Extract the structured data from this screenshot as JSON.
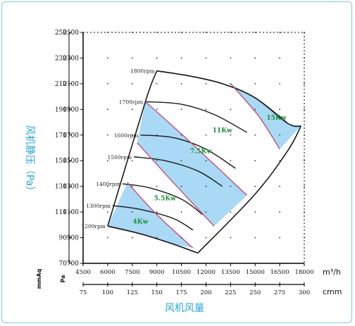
{
  "chart_data": {
    "type": "line",
    "title": "",
    "ylabel": "风机静压（Pa）",
    "xlabel": "风机风量",
    "y_primary": {
      "unit": "mmAq",
      "ticks": [
        70,
        90,
        110,
        130,
        150,
        170,
        190,
        210,
        230,
        250
      ]
    },
    "y_secondary": {
      "unit": "Pa",
      "ticks": [
        700,
        900,
        1100,
        1300,
        1500,
        1700,
        1900,
        2100,
        2300,
        2500
      ]
    },
    "x_primary": {
      "unit": "m³/h",
      "ticks": [
        4500,
        6000,
        7500,
        9000,
        10500,
        12000,
        13500,
        15000,
        16500,
        18000
      ]
    },
    "x_secondary": {
      "unit": "cmm",
      "ticks": [
        75,
        100,
        125,
        150,
        175,
        200,
        225,
        250,
        275,
        300
      ]
    },
    "xlim": [
      4500,
      18000
    ],
    "ylim": [
      700,
      2500
    ],
    "colors": {
      "region": "#a9d9f5",
      "power_line": "#c0507a",
      "curve": "#1a1a1a",
      "power_text": "#1e8b3a",
      "accent": "#29a6d6"
    },
    "rpm_curves": [
      {
        "label": "1200rpm",
        "points": [
          [
            6000,
            990
          ],
          [
            8000,
            930
          ],
          [
            10000,
            850
          ],
          [
            11500,
            780
          ]
        ]
      },
      {
        "label": "1300rpm",
        "points": [
          [
            6300,
            1150
          ],
          [
            8000,
            1120
          ],
          [
            10000,
            1050
          ],
          [
            11200,
            960
          ]
        ]
      },
      {
        "label": "1400rpm",
        "points": [
          [
            6900,
            1320
          ],
          [
            8500,
            1290
          ],
          [
            10500,
            1200
          ],
          [
            11800,
            1080
          ]
        ]
      },
      {
        "label": "1500rpm",
        "points": [
          [
            7600,
            1530
          ],
          [
            9500,
            1500
          ],
          [
            11500,
            1420
          ],
          [
            13000,
            1300
          ]
        ]
      },
      {
        "label": "1600rpm",
        "points": [
          [
            8000,
            1700
          ],
          [
            10000,
            1680
          ],
          [
            12000,
            1590
          ],
          [
            13800,
            1440
          ]
        ]
      },
      {
        "label": "1700rpm",
        "points": [
          [
            8300,
            1960
          ],
          [
            10500,
            1940
          ],
          [
            12500,
            1860
          ],
          [
            14500,
            1720
          ]
        ]
      },
      {
        "label": "1800rpm",
        "points": [
          [
            9000,
            2200
          ],
          [
            11000,
            2160
          ],
          [
            13000,
            2100
          ],
          [
            15000,
            1990
          ],
          [
            17000,
            1790
          ]
        ]
      }
    ],
    "boundaries": {
      "left": [
        [
          6000,
          990
        ],
        [
          8300,
          1960
        ],
        [
          9000,
          2200
        ]
      ],
      "right": [
        [
          11500,
          780
        ],
        [
          15000,
          1240
        ],
        [
          17000,
          1580
        ],
        [
          17800,
          1770
        ]
      ],
      "top": [
        [
          9000,
          2200
        ],
        [
          11000,
          2160
        ],
        [
          13000,
          2100
        ],
        [
          15000,
          1990
        ],
        [
          17000,
          1790
        ],
        [
          17800,
          1770
        ]
      ],
      "bottom": [
        [
          6000,
          990
        ],
        [
          8000,
          930
        ],
        [
          10000,
          850
        ],
        [
          11500,
          780
        ]
      ]
    },
    "power_lines": [
      {
        "label": "4Kw",
        "points": [
          [
            7200,
            1330
          ],
          [
            9000,
            1080
          ],
          [
            11200,
            820
          ]
        ]
      },
      {
        "label": "5.5Kw",
        "points": [
          [
            7800,
            1640
          ],
          [
            10000,
            1330
          ],
          [
            12500,
            990
          ]
        ]
      },
      {
        "label": "7.5Kw",
        "points": [
          [
            8300,
            1960
          ],
          [
            11000,
            1650
          ],
          [
            14500,
            1230
          ]
        ]
      },
      {
        "label": "11Kw",
        "points": []
      },
      {
        "label": "15Kw",
        "points": [
          [
            13500,
            2100
          ],
          [
            15200,
            1850
          ],
          [
            16500,
            1590
          ]
        ]
      }
    ],
    "bands": [
      {
        "label": "4Kw",
        "polygon": [
          [
            6000,
            990
          ],
          [
            7200,
            1330
          ],
          [
            9000,
            1080
          ],
          [
            11200,
            820
          ],
          [
            10000,
            850
          ],
          [
            8000,
            930
          ]
        ],
        "text_at": [
          8000,
          1010
        ]
      },
      {
        "label": "5.5Kw",
        "polygon": [
          [
            7800,
            1640
          ],
          [
            8300,
            1960
          ],
          [
            11000,
            1650
          ],
          [
            14500,
            1230
          ],
          [
            12500,
            990
          ],
          [
            10000,
            1330
          ]
        ],
        "text_at": [
          9500,
          1190
        ]
      },
      {
        "label": "7.5Kw",
        "polygon": [
          [
            8300,
            1960
          ],
          [
            11000,
            1650
          ],
          [
            14500,
            1230
          ],
          [
            12500,
            990
          ],
          [
            10000,
            1330
          ],
          [
            7800,
            1640
          ]
        ],
        "text_at": [
          11700,
          1560
        ]
      },
      {
        "label": "11Kw",
        "polygon": [],
        "text_at": [
          13000,
          1720
        ]
      },
      {
        "label": "15Kw",
        "polygon": [
          [
            13500,
            2100
          ],
          [
            15000,
            1990
          ],
          [
            17000,
            1790
          ],
          [
            17800,
            1770
          ],
          [
            16500,
            1590
          ],
          [
            15200,
            1850
          ]
        ],
        "text_at": [
          16300,
          1820
        ]
      }
    ]
  }
}
